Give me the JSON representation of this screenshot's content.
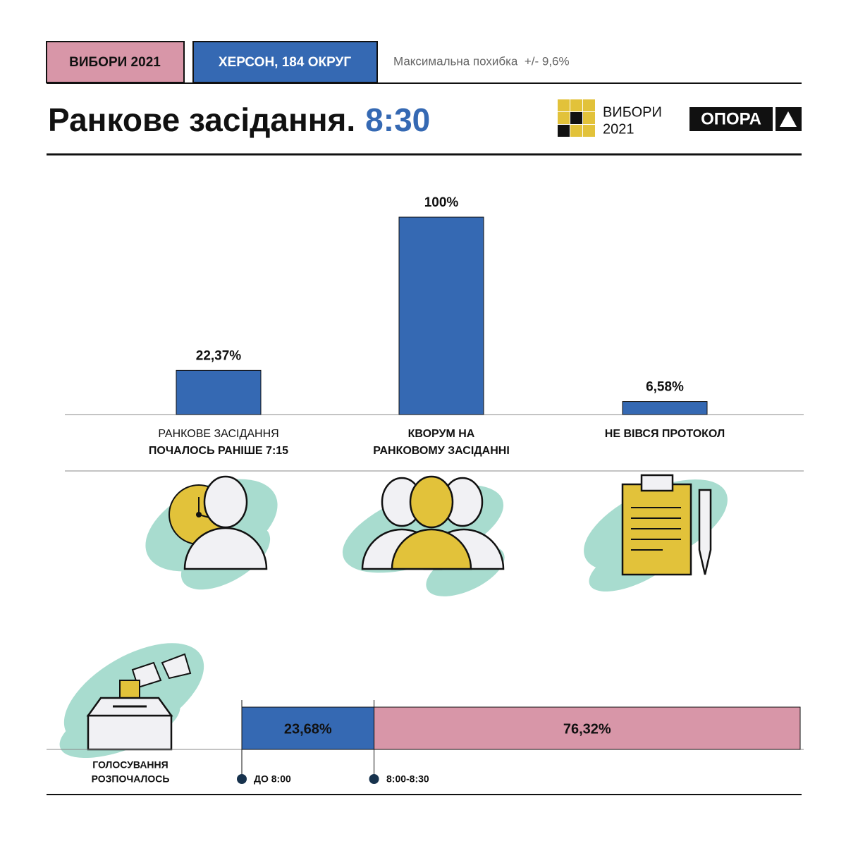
{
  "header": {
    "badge_election": "ВИБОРИ 2021",
    "badge_district": "ХЕРСОН, 184 ОКРУГ",
    "error_note": "Максимальна похибка  +/- 9,6%",
    "title": "Ранкове засідання.",
    "time": "8:30",
    "logo_line1": "ВИБОРИ",
    "logo_line2": "2021",
    "org": "ОПОРА"
  },
  "chart_data": [
    {
      "type": "bar",
      "categories": [
        [
          "РАНКОВЕ ЗАСІДАННЯ",
          "ПОЧАЛОСЬ РАНІШЕ 7:15"
        ],
        [
          "КВОРУМ НА",
          "РАНКОВОМУ ЗАСІДАННІ"
        ],
        [
          "НЕ ВІВСЯ ПРОТОКОЛ"
        ]
      ],
      "values": [
        22.37,
        100,
        6.58
      ],
      "value_labels": [
        "22,37%",
        "100%",
        "6,58%"
      ],
      "color": "#3569b3",
      "ylim": [
        0,
        100
      ]
    },
    {
      "type": "stacked-hbar",
      "category": [
        "ГОЛОСУВАННЯ",
        "РОЗПОЧАЛОСЬ"
      ],
      "xlim": [
        0,
        100
      ],
      "series": [
        {
          "name": "ДО 8:00",
          "color": "#3569b3",
          "values": [
            23.68
          ],
          "value_labels": [
            "23,68%"
          ]
        },
        {
          "name": "8:00-8:30",
          "color": "#d896a8",
          "values": [
            76.32
          ],
          "value_labels": [
            "76,32%"
          ]
        }
      ]
    }
  ]
}
